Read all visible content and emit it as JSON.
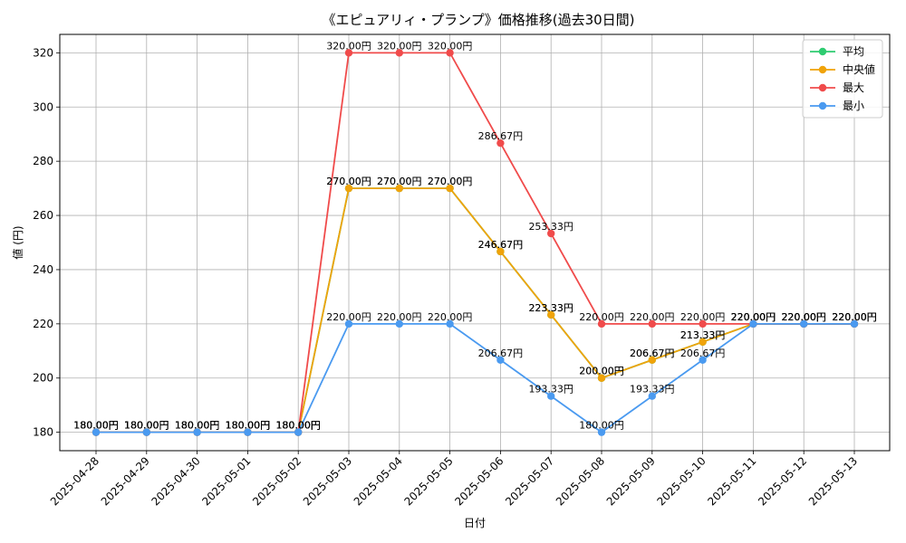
{
  "chart_data": {
    "type": "line",
    "title": "《エピュアリィ・プランプ》価格推移(過去30日間)",
    "xlabel": "日付",
    "ylabel": "値 (円)",
    "categories": [
      "2025-04-28",
      "2025-04-29",
      "2025-04-30",
      "2025-05-01",
      "2025-05-02",
      "2025-05-03",
      "2025-05-04",
      "2025-05-05",
      "2025-05-06",
      "2025-05-07",
      "2025-05-08",
      "2025-05-09",
      "2025-05-10",
      "2025-05-11",
      "2025-05-12",
      "2025-05-13"
    ],
    "ylim": [
      173.2,
      326.8
    ],
    "yticks": [
      180,
      200,
      220,
      240,
      260,
      280,
      300,
      320
    ],
    "grid": true,
    "legend_position": "top-right",
    "series": [
      {
        "name": "平均",
        "color": "#2ecc71",
        "values": [
          180,
          180,
          180,
          180,
          180,
          270,
          270,
          270,
          246.67,
          223.33,
          200,
          206.67,
          213.33,
          220,
          220,
          220
        ],
        "labels": [
          "180.00円",
          "180.00円",
          "180.00円",
          "180.00円",
          "180.00円",
          "270.00円",
          "270.00円",
          "270.00円",
          "246.67円",
          "223.33円",
          "200.00円",
          "206.67円",
          "213.33円",
          "220.00円",
          "220.00円",
          "220.00円"
        ]
      },
      {
        "name": "中央値",
        "color": "#f0a30a",
        "values": [
          180,
          180,
          180,
          180,
          180,
          270,
          270,
          270,
          246.67,
          223.33,
          200,
          206.67,
          213.33,
          220,
          220,
          220
        ],
        "labels": [
          "180.00円",
          "180.00円",
          "180.00円",
          "180.00円",
          "180.00円",
          "270.00円",
          "270.00円",
          "270.00円",
          "246.67円",
          "223.33円",
          "200.00円",
          "206.67円",
          "213.33円",
          "220.00円",
          "220.00円",
          "220.00円"
        ]
      },
      {
        "name": "最大",
        "color": "#f04b4b",
        "values": [
          180,
          180,
          180,
          180,
          180,
          320,
          320,
          320,
          286.67,
          253.33,
          220,
          220,
          220,
          220,
          220,
          220
        ],
        "labels": [
          "180.00円",
          "180.00円",
          "180.00円",
          "180.00円",
          "180.00円",
          "320.00円",
          "320.00円",
          "320.00円",
          "286.67円",
          "253.33円",
          "220.00円",
          "220.00円",
          "220.00円",
          "220.00円",
          "220.00円",
          "220.00円"
        ]
      },
      {
        "name": "最小",
        "color": "#4a9af0",
        "values": [
          180,
          180,
          180,
          180,
          180,
          220,
          220,
          220,
          206.67,
          193.33,
          180,
          193.33,
          206.67,
          220,
          220,
          220
        ],
        "labels": [
          "180.00円",
          "180.00円",
          "180.00円",
          "180.00円",
          "180.00円",
          "220.00円",
          "220.00円",
          "220.00円",
          "206.67円",
          "193.33円",
          "180.00円",
          "193.33円",
          "206.67円",
          "220.00円",
          "220.00円",
          "220.00円"
        ]
      }
    ]
  }
}
